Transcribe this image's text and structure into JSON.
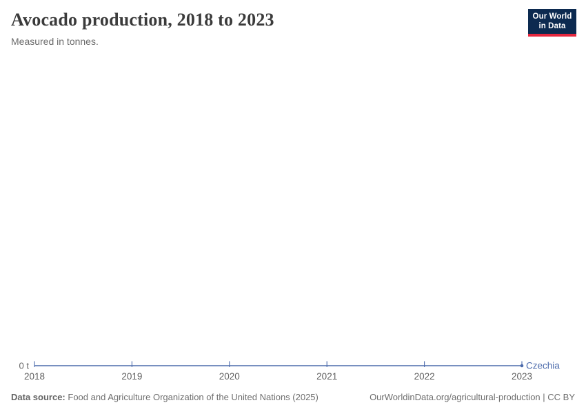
{
  "header": {
    "title": "Avocado production, 2018 to 2023",
    "subtitle": "Measured in tonnes.",
    "logo": {
      "line1": "Our World",
      "line2": "in Data"
    }
  },
  "chart_data": {
    "type": "line",
    "title": "Avocado production, 2018 to 2023",
    "unit": "tonnes",
    "x": [
      2018,
      2019,
      2020,
      2021,
      2022,
      2023
    ],
    "xticks": [
      "2018",
      "2019",
      "2020",
      "2021",
      "2022",
      "2023"
    ],
    "yticks": [
      "0 t"
    ],
    "ylim": [
      0,
      0
    ],
    "grid": false,
    "legend": "end-of-line-label",
    "series": [
      {
        "name": "Czechia",
        "values": [
          0,
          0,
          0,
          0,
          0,
          0
        ],
        "color": "#4c6bac"
      }
    ]
  },
  "footer": {
    "source_label": "Data source:",
    "source_text": "Food and Agriculture Organization of the United Nations (2025)",
    "link_text": "OurWorldinData.org/agricultural-production | CC BY"
  },
  "colors": {
    "series_blue": "#4c6bac",
    "logo_navy": "#0c2a50",
    "logo_red": "#e5273e",
    "title_gray": "#3b3b3b",
    "axis_text_gray": "#606060",
    "footer_gray": "#6e6e6e"
  }
}
